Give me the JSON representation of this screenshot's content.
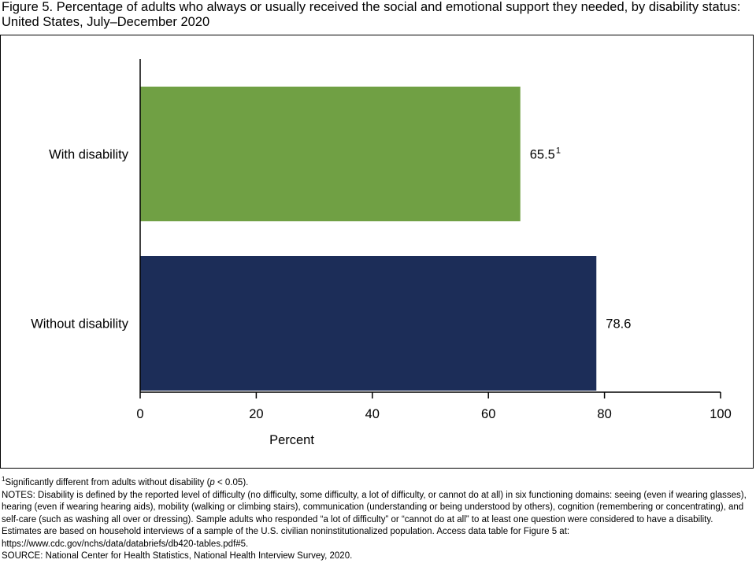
{
  "title": "Figure 5. Percentage of adults who always or usually received the social and emotional support they needed, by disability status: United States, July–December 2020",
  "chart_data": {
    "type": "bar",
    "orientation": "horizontal",
    "categories": [
      "With disability",
      "Without disability"
    ],
    "values": [
      65.5,
      78.6
    ],
    "value_labels": [
      "65.5",
      "78.6"
    ],
    "value_label_superscripts": [
      "1",
      ""
    ],
    "bar_colors": [
      "#70a044",
      "#1c2d58"
    ],
    "xlabel": "Percent",
    "ylabel": "",
    "xlim": [
      0,
      100
    ],
    "xticks": [
      0,
      20,
      40,
      60,
      80,
      100
    ],
    "grid": false,
    "legend": "none"
  },
  "notes": {
    "footnote_marker": "1",
    "footnote_text_pre": "Significantly different from adults without disability (",
    "footnote_p": "p",
    "footnote_text_post": " < 0.05).",
    "notes_text": "NOTES: Disability is defined by the reported level of difficulty (no difficulty, some difficulty, a lot of difficulty, or cannot do at all) in six functioning domains: seeing (even if wearing glasses), hearing (even if wearing hearing aids), mobility (walking or climbing stairs), communication (understanding or being understood by others), cognition (remembering or concentrating), and self-care (such as washing all over or dressing). Sample adults who responded “a lot of difficulty” or “cannot do at all” to at least one question were considered to have a disability. Estimates are based on household interviews of a sample of the U.S. civilian noninstitutionalized population. Access data table for Figure 5 at: https://www.cdc.gov/nchs/data/databriefs/db420-tables.pdf#5.",
    "source_text": "SOURCE: National Center for Health Statistics, National Health Interview Survey, 2020."
  }
}
